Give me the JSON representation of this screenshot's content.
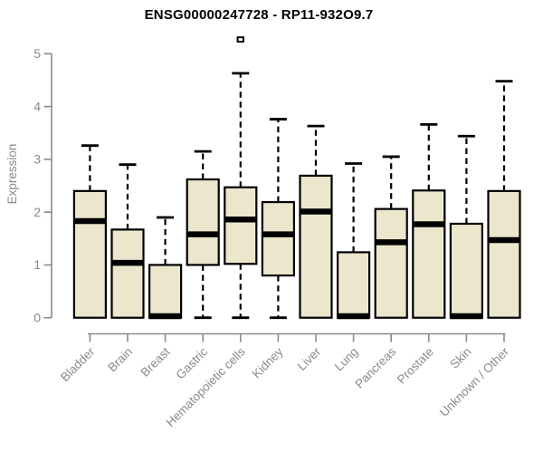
{
  "chart_data": {
    "type": "boxplot",
    "title": "ENSG00000247728 - RP11-932O9.7",
    "xlabel": "",
    "ylabel": "Expression",
    "ylim": [
      0,
      5.4
    ],
    "yticks": [
      0,
      1,
      2,
      3,
      4,
      5
    ],
    "grid": false,
    "legend": "none",
    "outlier_marker": "open-square",
    "categories": [
      "Bladder",
      "Brain",
      "Breast",
      "Gastric",
      "Hematopoietic cells",
      "Kidney",
      "Liver",
      "Lung",
      "Pancreas",
      "Prostate",
      "Skin",
      "Unknown / Other"
    ],
    "boxes": [
      {
        "category": "Bladder",
        "whisker_low": 0,
        "q1": 0,
        "median": 1.83,
        "q3": 2.4,
        "whisker_high": 3.26,
        "outliers": []
      },
      {
        "category": "Brain",
        "whisker_low": 0,
        "q1": 0,
        "median": 1.04,
        "q3": 1.67,
        "whisker_high": 2.9,
        "outliers": []
      },
      {
        "category": "Breast",
        "whisker_low": 0,
        "q1": 0,
        "median": 0.03,
        "q3": 1.0,
        "whisker_high": 1.9,
        "outliers": []
      },
      {
        "category": "Gastric",
        "whisker_low": 0,
        "q1": 1.0,
        "median": 1.58,
        "q3": 2.62,
        "whisker_high": 3.15,
        "outliers": []
      },
      {
        "category": "Hematopoietic cells",
        "whisker_low": 0,
        "q1": 1.02,
        "median": 1.86,
        "q3": 2.47,
        "whisker_high": 4.63,
        "outliers": [
          5.27
        ]
      },
      {
        "category": "Kidney",
        "whisker_low": 0,
        "q1": 0.8,
        "median": 1.58,
        "q3": 2.19,
        "whisker_high": 3.76,
        "outliers": []
      },
      {
        "category": "Liver",
        "whisker_low": 0,
        "q1": 0,
        "median": 2.01,
        "q3": 2.69,
        "whisker_high": 3.63,
        "outliers": []
      },
      {
        "category": "Lung",
        "whisker_low": 0,
        "q1": 0,
        "median": 0.03,
        "q3": 1.24,
        "whisker_high": 2.92,
        "outliers": []
      },
      {
        "category": "Pancreas",
        "whisker_low": 0,
        "q1": 0,
        "median": 1.43,
        "q3": 2.06,
        "whisker_high": 3.05,
        "outliers": []
      },
      {
        "category": "Prostate",
        "whisker_low": 0,
        "q1": 0,
        "median": 1.77,
        "q3": 2.41,
        "whisker_high": 3.66,
        "outliers": []
      },
      {
        "category": "Skin",
        "whisker_low": 0,
        "q1": 0,
        "median": 0.03,
        "q3": 1.78,
        "whisker_high": 3.44,
        "outliers": []
      },
      {
        "category": "Unknown / Other",
        "whisker_low": 0,
        "q1": 0,
        "median": 1.47,
        "q3": 2.4,
        "whisker_high": 4.48,
        "outliers": []
      }
    ],
    "colors": {
      "box_fill": "#EBE6CC",
      "box_stroke": "#000000",
      "median": "#000000",
      "whisker": "#000000",
      "axis": "#8a8a8a",
      "tick_label": "#8a8a8a",
      "title": "#000000",
      "background": "#ffffff"
    }
  }
}
